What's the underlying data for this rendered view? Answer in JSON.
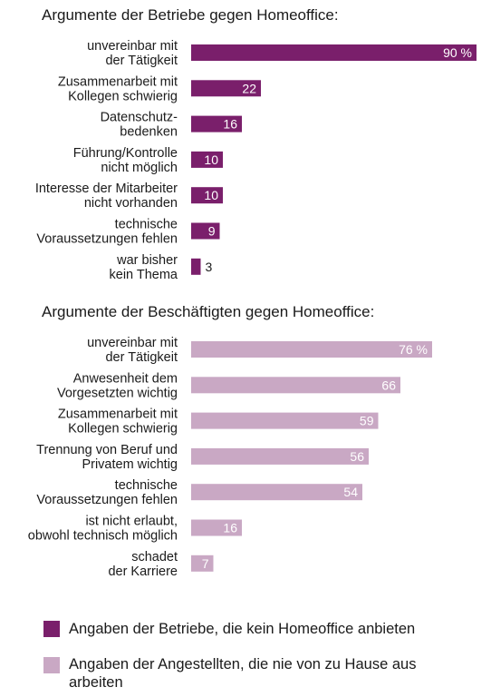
{
  "chart_data": [
    {
      "type": "bar",
      "orientation": "horizontal",
      "title": "Argumente der Betriebe gegen Homeoffice:",
      "color": "#7a1f6b",
      "unit_suffix": " %",
      "categories": [
        [
          "unvereinbar mit",
          "der Tätigkeit"
        ],
        [
          "Zusammenarbeit mit",
          "Kollegen schwierig"
        ],
        [
          "Datenschutz-",
          "bedenken"
        ],
        [
          "Führung/Kontrolle",
          "nicht möglich"
        ],
        [
          "Interesse der Mitarbeiter",
          "nicht vorhanden"
        ],
        [
          "technische",
          "Voraussetzungen fehlen"
        ],
        [
          "war bisher",
          "kein Thema"
        ]
      ],
      "values": [
        90,
        22,
        16,
        10,
        10,
        9,
        3
      ],
      "value_labels": [
        "90 %",
        "22",
        "16",
        "10",
        "10",
        "9",
        "3"
      ]
    },
    {
      "type": "bar",
      "orientation": "horizontal",
      "title": "Argumente der Beschäftigten gegen Homeoffice:",
      "color": "#c9a8c4",
      "unit_suffix": " %",
      "categories": [
        [
          "unvereinbar mit",
          "der Tätigkeit"
        ],
        [
          "Anwesenheit dem",
          "Vorgesetzten wichtig"
        ],
        [
          "Zusammenarbeit mit",
          "Kollegen schwierig"
        ],
        [
          "Trennung von Beruf und",
          "Privatem wichtig"
        ],
        [
          "technische",
          "Voraussetzungen fehlen"
        ],
        [
          "ist nicht erlaubt,",
          "obwohl technisch möglich"
        ],
        [
          "schadet",
          "der Karriere"
        ]
      ],
      "values": [
        76,
        66,
        59,
        56,
        54,
        16,
        7
      ],
      "value_labels": [
        "76 %",
        "66",
        "59",
        "56",
        "54",
        "16",
        "7"
      ]
    }
  ],
  "legend": [
    {
      "label": "Angaben der Betriebe, die kein Homeoffice anbieten",
      "color": "#7a1f6b"
    },
    {
      "label": "Angaben der Angestellten, die nie von zu Hause aus arbeiten",
      "color": "#c9a8c4"
    }
  ]
}
